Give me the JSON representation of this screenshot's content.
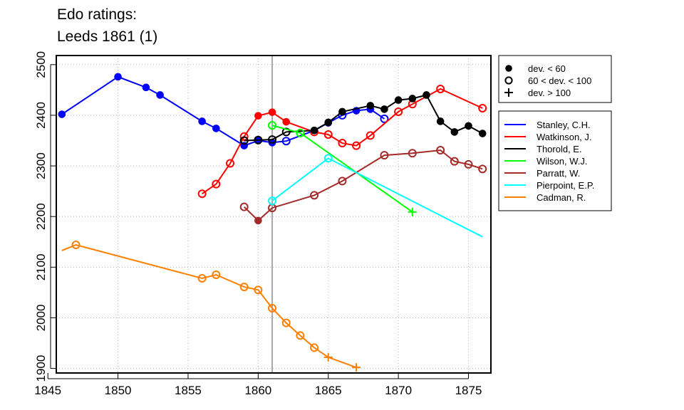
{
  "chart_data": {
    "type": "line",
    "title": "Edo ratings:",
    "subtitle": "Leeds 1861 (1)",
    "xlabel": "",
    "ylabel": "",
    "xlim": [
      1845.6,
      1876.6
    ],
    "ylim": [
      1891,
      2518
    ],
    "xticks": [
      1845,
      1850,
      1855,
      1860,
      1865,
      1870,
      1875
    ],
    "yticks": [
      1900,
      2000,
      2100,
      2200,
      2300,
      2400,
      2500
    ],
    "grid": true,
    "reference_line_x": 1861,
    "marker_legend": [
      {
        "marker": "filled",
        "label": "dev. < 60"
      },
      {
        "marker": "open",
        "label": "60 < dev. < 100"
      },
      {
        "marker": "plus",
        "label": "dev. > 100"
      }
    ],
    "series": [
      {
        "name": "Stanley, C.H.",
        "color": "#0000ff",
        "points": [
          [
            1846,
            2402,
            "filled"
          ],
          [
            1850,
            2476,
            "filled"
          ],
          [
            1852,
            2455,
            "filled"
          ],
          [
            1853,
            2440,
            "filled"
          ],
          [
            1856,
            2388,
            "filled"
          ],
          [
            1857,
            2374,
            "filled"
          ],
          [
            1859,
            2340,
            "filled"
          ],
          [
            1860,
            2350,
            "filled"
          ],
          [
            1861,
            2346,
            "filled"
          ],
          [
            1862,
            2349,
            "open"
          ],
          [
            1864,
            2370,
            "filled"
          ],
          [
            1865,
            2385,
            "filled"
          ],
          [
            1866,
            2400,
            "open"
          ],
          [
            1867,
            2409,
            "filled"
          ],
          [
            1868,
            2412,
            "filled"
          ],
          [
            1869,
            2393,
            "open"
          ]
        ]
      },
      {
        "name": "Watkinson, J.",
        "color": "#ff0000",
        "points": [
          [
            1856,
            2245,
            "open"
          ],
          [
            1857,
            2264,
            "open"
          ],
          [
            1858,
            2305,
            "open"
          ],
          [
            1859,
            2358,
            "open"
          ],
          [
            1860,
            2399,
            "filled"
          ],
          [
            1861,
            2406,
            "filled"
          ],
          [
            1862,
            2387,
            "filled"
          ],
          [
            1864,
            2367,
            "open"
          ],
          [
            1865,
            2362,
            "open"
          ],
          [
            1866,
            2345,
            "open"
          ],
          [
            1867,
            2340,
            "open"
          ],
          [
            1868,
            2360,
            "open"
          ],
          [
            1870,
            2407,
            "open"
          ],
          [
            1871,
            2422,
            "open"
          ],
          [
            1873,
            2452,
            "open"
          ],
          [
            1876,
            2414,
            "open"
          ]
        ]
      },
      {
        "name": "Thorold, E.",
        "color": "#000000",
        "points": [
          [
            1859,
            2350,
            "open"
          ],
          [
            1860,
            2351,
            "open"
          ],
          [
            1861,
            2352,
            "open"
          ],
          [
            1862,
            2367,
            "open"
          ],
          [
            1864,
            2370,
            "filled"
          ],
          [
            1865,
            2386,
            "filled"
          ],
          [
            1866,
            2407,
            "filled"
          ],
          [
            1868,
            2419,
            "filled"
          ],
          [
            1869,
            2412,
            "filled"
          ],
          [
            1870,
            2430,
            "filled"
          ],
          [
            1871,
            2433,
            "filled"
          ],
          [
            1872,
            2440,
            "filled"
          ],
          [
            1873,
            2388,
            "filled"
          ],
          [
            1874,
            2367,
            "filled"
          ],
          [
            1875,
            2379,
            "filled"
          ],
          [
            1876,
            2364,
            "filled"
          ]
        ]
      },
      {
        "name": "Wilson, W.J.",
        "color": "#00ff00",
        "points": [
          [
            1861,
            2380,
            "open"
          ],
          [
            1863,
            2365,
            "open"
          ],
          [
            1871,
            2209,
            "plus"
          ]
        ]
      },
      {
        "name": "Parratt, W.",
        "color": "#a52a2a",
        "points": [
          [
            1859,
            2219,
            "open"
          ],
          [
            1860,
            2192,
            "filled"
          ],
          [
            1861,
            2217,
            "open"
          ],
          [
            1864,
            2242,
            "open"
          ],
          [
            1866,
            2270,
            "open"
          ],
          [
            1869,
            2321,
            "open"
          ],
          [
            1871,
            2325,
            "open"
          ],
          [
            1873,
            2331,
            "open"
          ],
          [
            1874,
            2309,
            "open"
          ],
          [
            1875,
            2303,
            "open"
          ],
          [
            1876,
            2294,
            "open"
          ]
        ]
      },
      {
        "name": "Pierpoint, E.P.",
        "color": "#00ffff",
        "points": [
          [
            1861,
            2231,
            "open"
          ],
          [
            1865,
            2315,
            "open"
          ],
          [
            1876,
            2160,
            "none"
          ]
        ]
      },
      {
        "name": "Cadman, R.",
        "color": "#ff7f00",
        "points": [
          [
            1846,
            2133,
            "none"
          ],
          [
            1847,
            2144,
            "open"
          ],
          [
            1856,
            2078,
            "open"
          ],
          [
            1857,
            2085,
            "open"
          ],
          [
            1859,
            2061,
            "open"
          ],
          [
            1860,
            2055,
            "open"
          ],
          [
            1861,
            2019,
            "open"
          ],
          [
            1862,
            1990,
            "open"
          ],
          [
            1863,
            1965,
            "open"
          ],
          [
            1864,
            1941,
            "open"
          ],
          [
            1865,
            1922,
            "plus"
          ],
          [
            1867,
            1902,
            "plus"
          ]
        ]
      }
    ]
  }
}
